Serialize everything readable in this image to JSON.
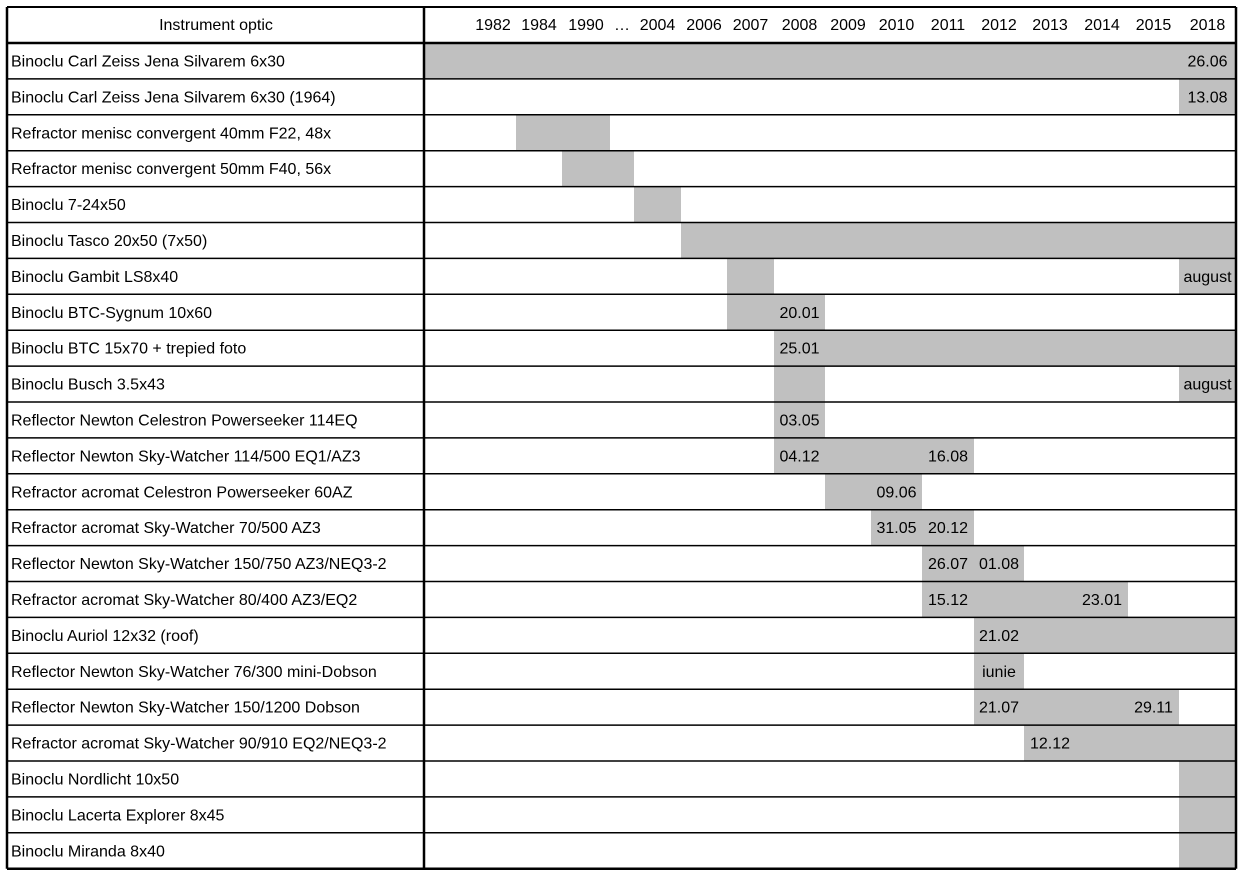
{
  "chart_data": {
    "type": "table",
    "header_label": "Instrument optic",
    "columns": [
      "1982",
      "1984",
      "1990",
      "…",
      "2004",
      "2006",
      "2007",
      "2008",
      "2009",
      "2010",
      "2011",
      "2012",
      "2013",
      "2014",
      "2015",
      "2018"
    ],
    "bar_color": "#c0c0c0",
    "rows": [
      {
        "name": "Binoclu Carl Zeiss Jena Silvarem 6x30",
        "start": "1982",
        "end": "2018",
        "labels": [
          {
            "col": "2018",
            "text": "26.06"
          }
        ]
      },
      {
        "name": "Binoclu Carl Zeiss Jena Silvarem 6x30 (1964)",
        "start": "2018",
        "end": "2018",
        "labels": [
          {
            "col": "2018",
            "text": "13.08"
          }
        ]
      },
      {
        "name": "Refractor menisc convergent 40mm F22, 48x",
        "start": "1984",
        "end": "1990",
        "labels": []
      },
      {
        "name": "Refractor menisc convergent 50mm F40, 56x",
        "start": "1990",
        "end": "…",
        "labels": []
      },
      {
        "name": "Binoclu 7-24x50",
        "start": "2004",
        "end": "2004",
        "labels": []
      },
      {
        "name": "Binoclu Tasco 20x50 (7x50)",
        "start": "2006",
        "end": "2018",
        "labels": []
      },
      {
        "name": "Binoclu Gambit LS8x40",
        "start": "2007",
        "end": "2007",
        "labels": [
          {
            "col": "2018",
            "text": "august"
          }
        ],
        "extra": [
          "2018"
        ]
      },
      {
        "name": "Binoclu BTC-Sygnum 10x60",
        "start": "2007",
        "end": "2008",
        "labels": [
          {
            "col": "2008",
            "text": "20.01"
          }
        ]
      },
      {
        "name": "Binoclu BTC 15x70 + trepied foto",
        "start": "2008",
        "end": "2018",
        "labels": [
          {
            "col": "2008",
            "text": "25.01"
          }
        ]
      },
      {
        "name": "Binoclu Busch 3.5x43",
        "start": "2008",
        "end": "2008",
        "labels": [
          {
            "col": "2018",
            "text": "august"
          }
        ],
        "extra": [
          "2018"
        ]
      },
      {
        "name": "Reflector Newton Celestron Powerseeker 114EQ",
        "start": "2008",
        "end": "2008",
        "labels": [
          {
            "col": "2008",
            "text": "03.05"
          }
        ]
      },
      {
        "name": "Reflector Newton Sky-Watcher 114/500 EQ1/AZ3",
        "start": "2008",
        "end": "2011",
        "labels": [
          {
            "col": "2008",
            "text": "04.12"
          },
          {
            "col": "2011",
            "text": "16.08"
          }
        ]
      },
      {
        "name": "Refractor acromat Celestron Powerseeker 60AZ",
        "start": "2009",
        "end": "2010",
        "labels": [
          {
            "col": "2010",
            "text": "09.06"
          }
        ]
      },
      {
        "name": "Refractor acromat Sky-Watcher 70/500 AZ3",
        "start": "2010",
        "end": "2011",
        "labels": [
          {
            "col": "2010",
            "text": "31.05"
          },
          {
            "col": "2011",
            "text": "20.12"
          }
        ]
      },
      {
        "name": "Reflector Newton Sky-Watcher 150/750 AZ3/NEQ3-2",
        "start": "2011",
        "end": "2012",
        "labels": [
          {
            "col": "2011",
            "text": "26.07"
          },
          {
            "col": "2012",
            "text": "01.08"
          }
        ]
      },
      {
        "name": "Refractor acromat Sky-Watcher 80/400 AZ3/EQ2",
        "start": "2011",
        "end": "2014",
        "labels": [
          {
            "col": "2011",
            "text": "15.12"
          },
          {
            "col": "2014",
            "text": "23.01"
          }
        ]
      },
      {
        "name": "Binoclu Auriol 12x32 (roof)",
        "start": "2012",
        "end": "2018",
        "labels": [
          {
            "col": "2012",
            "text": "21.02"
          }
        ]
      },
      {
        "name": "Reflector Newton Sky-Watcher 76/300 mini-Dobson",
        "start": "2012",
        "end": "2012",
        "labels": [
          {
            "col": "2012",
            "text": "iunie"
          }
        ]
      },
      {
        "name": "Reflector Newton Sky-Watcher 150/1200 Dobson",
        "start": "2012",
        "end": "2015",
        "labels": [
          {
            "col": "2012",
            "text": "21.07"
          },
          {
            "col": "2015",
            "text": "29.11"
          }
        ]
      },
      {
        "name": "Refractor acromat Sky-Watcher 90/910 EQ2/NEQ3-2",
        "start": "2013",
        "end": "2018",
        "labels": [
          {
            "col": "2013",
            "text": "12.12"
          }
        ]
      },
      {
        "name": "Binoclu Nordlicht 10x50",
        "start": "2018",
        "end": "2018",
        "labels": []
      },
      {
        "name": "Binoclu Lacerta Explorer 8x45",
        "start": "2018",
        "end": "2018",
        "labels": []
      },
      {
        "name": "Binoclu Miranda 8x40",
        "start": "2018",
        "end": "2018",
        "labels": []
      }
    ]
  }
}
